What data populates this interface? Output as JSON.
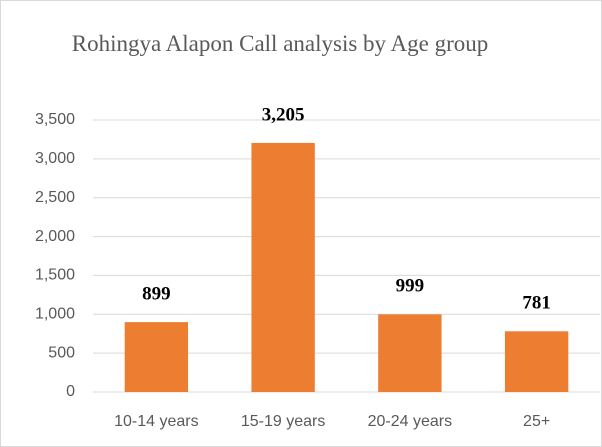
{
  "chart_data": {
    "type": "bar",
    "title": "Rohingya Alapon Call analysis by Age group",
    "categories": [
      "10-14 years",
      "15-19 years",
      "20-24 years",
      "25+"
    ],
    "values": [
      899,
      3205,
      999,
      781
    ],
    "value_labels": [
      "899",
      "3,205",
      "999",
      "781"
    ],
    "color": "#ed7d31",
    "ylim": [
      0,
      3500
    ],
    "yticks": [
      0,
      500,
      {
        "value": 1000,
        "label": "1,000"
      },
      {
        "value": 1500,
        "label": "1,500"
      },
      {
        "value": 2000,
        "label": "2,000"
      },
      {
        "value": 2500,
        "label": "2,500"
      },
      {
        "value": 3000,
        "label": "3,000"
      },
      {
        "value": 3500,
        "label": "3,500"
      }
    ],
    "grid": true
  }
}
